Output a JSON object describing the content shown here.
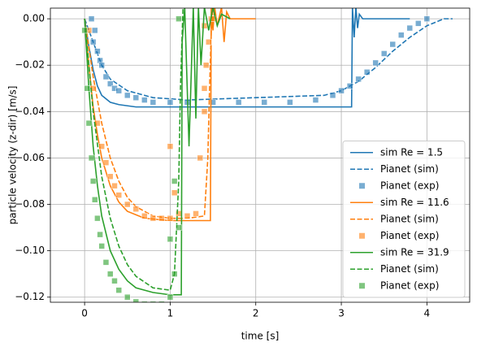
{
  "chart_data": {
    "type": "line",
    "xlabel": "time [s]",
    "ylabel": "particle velocity (z-dir) [m/s]",
    "xlim": [
      -0.4,
      4.5
    ],
    "ylim": [
      -0.1222,
      0.0046
    ],
    "xticks": [
      0,
      1,
      2,
      3,
      4
    ],
    "yticks": [
      {
        "value": 0,
        "label": "0.00"
      },
      {
        "value": -0.02,
        "label": "−0.02"
      },
      {
        "value": -0.04,
        "label": "−0.04"
      },
      {
        "value": -0.06,
        "label": "−0.06"
      },
      {
        "value": -0.08,
        "label": "−0.08"
      },
      {
        "value": -0.1,
        "label": "−0.10"
      },
      {
        "value": -0.12,
        "label": "−0.12"
      }
    ],
    "grid": true,
    "legend": "lower right",
    "series": [
      {
        "name": "sim Re = 1.5",
        "color": "#1f77b4",
        "style": "solid",
        "x": [
          0,
          0.05,
          0.1,
          0.15,
          0.2,
          0.3,
          0.4,
          0.6,
          1,
          2,
          3.12,
          3.13,
          3.15,
          3.17,
          3.19,
          3.21,
          3.25,
          3.4,
          3.8
        ],
        "values": [
          0,
          -0.012,
          -0.022,
          -0.029,
          -0.033,
          -0.036,
          -0.037,
          -0.038,
          -0.038,
          -0.038,
          -0.038,
          0.005,
          -0.008,
          0.005,
          -0.004,
          0.002,
          0,
          0,
          0
        ]
      },
      {
        "name": "Pianet (sim)",
        "color": "#1f77b4",
        "style": "dashed",
        "x": [
          0,
          0.1,
          0.2,
          0.3,
          0.5,
          0.8,
          1.2,
          2,
          2.8,
          3.0,
          3.2,
          3.4,
          3.6,
          3.8,
          4.0,
          4.2,
          4.3
        ],
        "values": [
          0,
          -0.01,
          -0.02,
          -0.026,
          -0.031,
          -0.034,
          -0.035,
          -0.034,
          -0.033,
          -0.031,
          -0.027,
          -0.021,
          -0.014,
          -0.008,
          -0.003,
          0,
          0
        ]
      },
      {
        "name": "Pianet (exp)",
        "color": "#1f77b4",
        "style": "marker",
        "x": [
          0.08,
          0.1,
          0.12,
          0.15,
          0.18,
          0.2,
          0.25,
          0.3,
          0.35,
          0.4,
          0.5,
          0.6,
          0.7,
          0.8,
          1.0,
          1.2,
          1.5,
          1.8,
          2.1,
          2.4,
          2.7,
          2.9,
          3.0,
          3.1,
          3.2,
          3.3,
          3.4,
          3.5,
          3.6,
          3.7,
          3.8,
          3.9,
          4.0
        ],
        "values": [
          0,
          -0.01,
          -0.005,
          -0.014,
          -0.018,
          -0.02,
          -0.025,
          -0.028,
          -0.03,
          -0.031,
          -0.033,
          -0.034,
          -0.035,
          -0.036,
          -0.036,
          -0.036,
          -0.036,
          -0.036,
          -0.036,
          -0.036,
          -0.035,
          -0.033,
          -0.031,
          -0.029,
          -0.026,
          -0.023,
          -0.019,
          -0.015,
          -0.011,
          -0.007,
          -0.004,
          -0.002,
          0
        ]
      },
      {
        "name": "sim Re = 11.6",
        "color": "#ff7f0e",
        "style": "solid",
        "x": [
          0,
          0.05,
          0.1,
          0.15,
          0.2,
          0.3,
          0.4,
          0.5,
          0.7,
          1.0,
          1.47,
          1.48,
          1.5,
          1.52,
          1.55,
          1.6,
          1.63,
          1.66,
          1.7,
          2.0
        ],
        "values": [
          0,
          -0.02,
          -0.038,
          -0.05,
          -0.06,
          -0.072,
          -0.079,
          -0.083,
          -0.086,
          -0.087,
          -0.087,
          0.005,
          -0.005,
          0.005,
          -0.003,
          0.005,
          -0.01,
          0.003,
          0,
          0
        ]
      },
      {
        "name": "Pianet (sim)",
        "color": "#ff7f0e",
        "style": "dashed",
        "x": [
          0,
          0.1,
          0.2,
          0.3,
          0.4,
          0.5,
          0.6,
          0.8,
          1.0,
          1.2,
          1.4,
          1.44,
          1.46,
          1.48,
          1.5
        ],
        "values": [
          0,
          -0.025,
          -0.045,
          -0.06,
          -0.07,
          -0.077,
          -0.081,
          -0.085,
          -0.086,
          -0.086,
          -0.085,
          -0.06,
          -0.03,
          -0.005,
          0.005
        ]
      },
      {
        "name": "Pianet (exp)",
        "color": "#ff7f0e",
        "style": "marker",
        "x": [
          0.05,
          0.1,
          0.15,
          0.2,
          0.25,
          0.3,
          0.35,
          0.4,
          0.5,
          0.6,
          0.7,
          0.8,
          0.9,
          1.0,
          1.05,
          1.1,
          1.2,
          1.3,
          1.35,
          1.4,
          1.42,
          1.45,
          1.48,
          1.0,
          1.4,
          1.4,
          1.5
        ],
        "values": [
          -0.005,
          -0.03,
          -0.045,
          -0.055,
          -0.062,
          -0.068,
          -0.072,
          -0.076,
          -0.08,
          -0.082,
          -0.085,
          -0.086,
          -0.086,
          -0.086,
          -0.075,
          -0.084,
          -0.085,
          -0.084,
          -0.06,
          -0.04,
          -0.02,
          -0.01,
          0,
          -0.055,
          -0.03,
          -0.003,
          0
        ]
      },
      {
        "name": "sim Re = 31.9",
        "color": "#2ca02c",
        "style": "solid",
        "x": [
          0,
          0.05,
          0.1,
          0.15,
          0.2,
          0.3,
          0.4,
          0.5,
          0.6,
          0.8,
          1.0,
          1.13,
          1.14,
          1.17,
          1.22,
          1.27,
          1.3,
          1.33,
          1.36,
          1.4,
          1.45,
          1.5,
          1.55,
          1.6,
          1.7
        ],
        "values": [
          0,
          -0.03,
          -0.055,
          -0.072,
          -0.085,
          -0.1,
          -0.108,
          -0.113,
          -0.116,
          -0.118,
          -0.119,
          -0.119,
          -0.01,
          0.005,
          -0.055,
          0.005,
          -0.043,
          0.005,
          -0.02,
          0.005,
          -0.005,
          0.005,
          -0.003,
          0.002,
          0
        ]
      },
      {
        "name": "Pianet (sim)",
        "color": "#2ca02c",
        "style": "dashed",
        "x": [
          0,
          0.1,
          0.2,
          0.3,
          0.4,
          0.5,
          0.6,
          0.8,
          1.0,
          1.05,
          1.1,
          1.12,
          1.15
        ],
        "values": [
          0,
          -0.04,
          -0.068,
          -0.086,
          -0.098,
          -0.106,
          -0.111,
          -0.116,
          -0.117,
          -0.11,
          -0.07,
          -0.03,
          0.005
        ]
      },
      {
        "name": "Pianet (exp)",
        "color": "#2ca02c",
        "style": "marker",
        "x": [
          0,
          0.03,
          0.05,
          0.08,
          0.1,
          0.12,
          0.15,
          0.18,
          0.2,
          0.25,
          0.3,
          0.35,
          0.4,
          0.5,
          0.6,
          0.7,
          0.8,
          0.9,
          1.0,
          1.05,
          1.1,
          1.05,
          1.0,
          1.1
        ],
        "values": [
          -0.005,
          -0.03,
          -0.045,
          -0.06,
          -0.07,
          -0.078,
          -0.086,
          -0.093,
          -0.098,
          -0.105,
          -0.11,
          -0.113,
          -0.117,
          -0.12,
          -0.122,
          -0.123,
          -0.123,
          -0.123,
          -0.12,
          -0.11,
          -0.09,
          -0.07,
          -0.095,
          0
        ]
      }
    ]
  }
}
